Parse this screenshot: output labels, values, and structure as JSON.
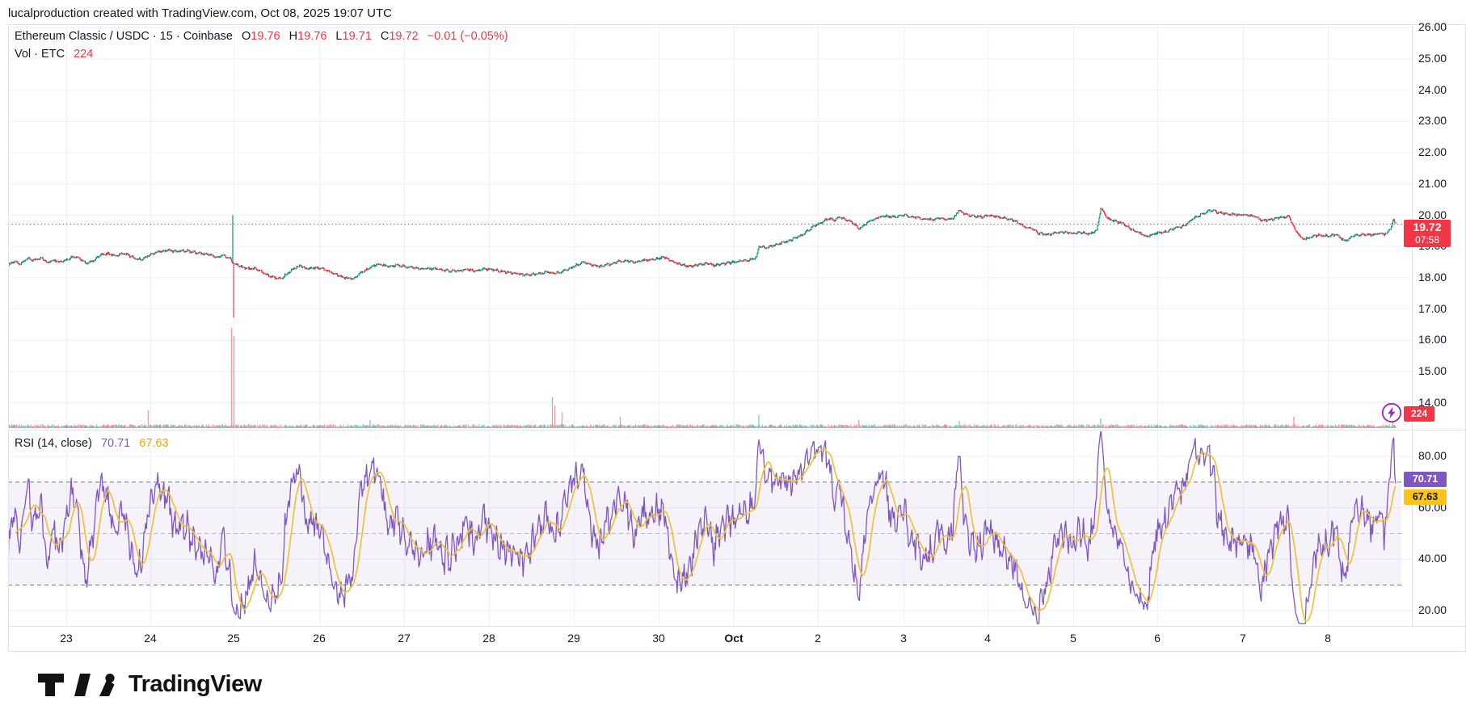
{
  "attribution": "lucalproduction created with TradingView.com, Oct 08, 2025 19:07 UTC",
  "legend": {
    "title": "Ethereum Classic / USDC · 15 · Coinbase",
    "ohlc": [
      {
        "label": "O",
        "value": "19.76"
      },
      {
        "label": "H",
        "value": "19.76"
      },
      {
        "label": "L",
        "value": "19.71"
      },
      {
        "label": "C",
        "value": "19.72"
      }
    ],
    "change": "−0.01 (−0.05%)",
    "vol_label": "Vol · ETC",
    "vol_value": "224"
  },
  "rsi_legend": {
    "label": "RSI (14, close)",
    "rsi_value": "70.71",
    "ma_value": "67.63"
  },
  "badges": {
    "price": "19.72",
    "price_time": "07:58",
    "volume": "224",
    "rsi": "70.71",
    "rsi_ma": "67.63"
  },
  "logo": {
    "text": "TradingView"
  },
  "colors": {
    "up": "#089981",
    "down": "#F23645",
    "accent_red": "#F23645",
    "rsi_line": "#7E57C2",
    "rsi_ma_line": "#F0C13B",
    "badge_purple": "#7E57C2",
    "badge_yellow": "#FCC419",
    "boost_purple": "#9C27B0",
    "grid": "#eef1f7",
    "border": "#e0e3eb",
    "band_fill": "#7E57C2",
    "dashed": "#787b86",
    "dashed_mid": "#9a9da6"
  },
  "chart_data": [
    {
      "type": "candlestick",
      "symbol": "Ethereum Classic / USDC",
      "interval": "15",
      "exchange": "Coinbase",
      "ohlc": {
        "open": 19.76,
        "high": 19.76,
        "low": 19.71,
        "close": 19.72,
        "change": -0.01,
        "change_pct": -0.05
      },
      "volume": 224,
      "last_price": 19.72,
      "last_time": "07:58",
      "y_ticks": [
        26,
        25,
        24,
        23,
        22,
        21,
        20,
        19,
        18,
        17,
        16,
        15,
        14
      ],
      "x_labels": [
        "23",
        "24",
        "25",
        "26",
        "27",
        "28",
        "29",
        "30",
        "Oct",
        "2",
        "3",
        "4",
        "5",
        "6",
        "7",
        "8"
      ],
      "x_label_bold": "Oct",
      "ylim": [
        13.6,
        26.1
      ],
      "price_keypoints": [
        [
          -0.9,
          18.45
        ],
        [
          -0.69,
          18.42
        ],
        [
          -0.62,
          18.52
        ],
        [
          -0.55,
          18.45
        ],
        [
          -0.45,
          18.62
        ],
        [
          -0.38,
          18.55
        ],
        [
          -0.3,
          18.62
        ],
        [
          -0.22,
          18.48
        ],
        [
          -0.15,
          18.56
        ],
        [
          -0.08,
          18.5
        ],
        [
          0,
          18.58
        ],
        [
          0.08,
          18.68
        ],
        [
          0.16,
          18.62
        ],
        [
          0.24,
          18.45
        ],
        [
          0.32,
          18.55
        ],
        [
          0.4,
          18.72
        ],
        [
          0.5,
          18.78
        ],
        [
          0.58,
          18.7
        ],
        [
          0.66,
          18.78
        ],
        [
          0.74,
          18.72
        ],
        [
          0.82,
          18.62
        ],
        [
          0.9,
          18.58
        ],
        [
          0.96,
          18.68
        ],
        [
          1.04,
          18.78
        ],
        [
          1.12,
          18.85
        ],
        [
          1.22,
          18.87
        ],
        [
          1.32,
          18.84
        ],
        [
          1.42,
          18.87
        ],
        [
          1.52,
          18.82
        ],
        [
          1.62,
          18.78
        ],
        [
          1.72,
          18.72
        ],
        [
          1.8,
          18.66
        ],
        [
          1.88,
          18.72
        ],
        [
          1.96,
          18.6
        ],
        [
          1.99,
          18.5
        ],
        [
          2.02,
          18.42
        ],
        [
          2.1,
          18.35
        ],
        [
          2.18,
          18.28
        ],
        [
          2.26,
          18.3
        ],
        [
          2.36,
          18.12
        ],
        [
          2.46,
          18.02
        ],
        [
          2.54,
          17.97
        ],
        [
          2.62,
          18.12
        ],
        [
          2.7,
          18.3
        ],
        [
          2.78,
          18.38
        ],
        [
          2.86,
          18.28
        ],
        [
          2.94,
          18.32
        ],
        [
          3.02,
          18.3
        ],
        [
          3.1,
          18.22
        ],
        [
          3.2,
          18.1
        ],
        [
          3.3,
          18.0
        ],
        [
          3.4,
          17.98
        ],
        [
          3.5,
          18.18
        ],
        [
          3.6,
          18.32
        ],
        [
          3.68,
          18.44
        ],
        [
          3.76,
          18.4
        ],
        [
          3.84,
          18.36
        ],
        [
          3.92,
          18.4
        ],
        [
          4.0,
          18.36
        ],
        [
          4.12,
          18.32
        ],
        [
          4.24,
          18.28
        ],
        [
          4.36,
          18.3
        ],
        [
          4.48,
          18.24
        ],
        [
          4.6,
          18.2
        ],
        [
          4.72,
          18.26
        ],
        [
          4.84,
          18.22
        ],
        [
          4.96,
          18.28
        ],
        [
          5.08,
          18.24
        ],
        [
          5.2,
          18.18
        ],
        [
          5.32,
          18.14
        ],
        [
          5.44,
          18.08
        ],
        [
          5.56,
          18.12
        ],
        [
          5.68,
          18.18
        ],
        [
          5.78,
          18.14
        ],
        [
          5.88,
          18.22
        ],
        [
          5.96,
          18.3
        ],
        [
          6.04,
          18.42
        ],
        [
          6.12,
          18.5
        ],
        [
          6.2,
          18.42
        ],
        [
          6.3,
          18.36
        ],
        [
          6.4,
          18.42
        ],
        [
          6.5,
          18.5
        ],
        [
          6.6,
          18.56
        ],
        [
          6.7,
          18.5
        ],
        [
          6.8,
          18.55
        ],
        [
          6.9,
          18.58
        ],
        [
          7.0,
          18.62
        ],
        [
          7.08,
          18.66
        ],
        [
          7.16,
          18.55
        ],
        [
          7.24,
          18.46
        ],
        [
          7.34,
          18.4
        ],
        [
          7.44,
          18.36
        ],
        [
          7.54,
          18.42
        ],
        [
          7.64,
          18.46
        ],
        [
          7.74,
          18.4
        ],
        [
          7.84,
          18.44
        ],
        [
          7.94,
          18.48
        ],
        [
          8.04,
          18.52
        ],
        [
          8.14,
          18.55
        ],
        [
          8.22,
          18.6
        ],
        [
          8.26,
          18.62
        ],
        [
          8.3,
          19.02
        ],
        [
          8.38,
          18.96
        ],
        [
          8.46,
          19.03
        ],
        [
          8.54,
          19.08
        ],
        [
          8.62,
          19.15
        ],
        [
          8.72,
          19.26
        ],
        [
          8.82,
          19.38
        ],
        [
          8.9,
          19.55
        ],
        [
          8.97,
          19.68
        ],
        [
          9.05,
          19.78
        ],
        [
          9.12,
          19.9
        ],
        [
          9.18,
          19.84
        ],
        [
          9.26,
          19.93
        ],
        [
          9.32,
          19.86
        ],
        [
          9.4,
          19.78
        ],
        [
          9.48,
          19.56
        ],
        [
          9.54,
          19.7
        ],
        [
          9.62,
          19.84
        ],
        [
          9.7,
          19.92
        ],
        [
          9.78,
          19.98
        ],
        [
          9.86,
          19.94
        ],
        [
          9.94,
          19.98
        ],
        [
          10.02,
          20.0
        ],
        [
          10.12,
          19.94
        ],
        [
          10.22,
          19.9
        ],
        [
          10.32,
          19.86
        ],
        [
          10.42,
          19.9
        ],
        [
          10.52,
          19.86
        ],
        [
          10.6,
          19.92
        ],
        [
          10.66,
          20.18
        ],
        [
          10.72,
          20.04
        ],
        [
          10.82,
          19.97
        ],
        [
          10.92,
          19.95
        ],
        [
          11.02,
          19.99
        ],
        [
          11.12,
          19.95
        ],
        [
          11.22,
          19.9
        ],
        [
          11.32,
          19.82
        ],
        [
          11.42,
          19.65
        ],
        [
          11.52,
          19.55
        ],
        [
          11.6,
          19.42
        ],
        [
          11.7,
          19.38
        ],
        [
          11.8,
          19.44
        ],
        [
          11.9,
          19.46
        ],
        [
          12.0,
          19.42
        ],
        [
          12.1,
          19.45
        ],
        [
          12.2,
          19.4
        ],
        [
          12.28,
          19.52
        ],
        [
          12.33,
          20.25
        ],
        [
          12.4,
          19.9
        ],
        [
          12.5,
          19.8
        ],
        [
          12.58,
          19.76
        ],
        [
          12.68,
          19.56
        ],
        [
          12.78,
          19.44
        ],
        [
          12.88,
          19.32
        ],
        [
          12.98,
          19.42
        ],
        [
          13.08,
          19.46
        ],
        [
          13.18,
          19.56
        ],
        [
          13.3,
          19.64
        ],
        [
          13.42,
          19.9
        ],
        [
          13.52,
          20.04
        ],
        [
          13.62,
          20.16
        ],
        [
          13.72,
          20.08
        ],
        [
          13.82,
          20.04
        ],
        [
          13.92,
          20.02
        ],
        [
          14.02,
          20.0
        ],
        [
          14.12,
          19.98
        ],
        [
          14.22,
          19.82
        ],
        [
          14.32,
          19.86
        ],
        [
          14.44,
          19.93
        ],
        [
          14.54,
          19.96
        ],
        [
          14.62,
          19.5
        ],
        [
          14.7,
          19.22
        ],
        [
          14.8,
          19.3
        ],
        [
          14.9,
          19.38
        ],
        [
          15.0,
          19.33
        ],
        [
          15.1,
          19.38
        ],
        [
          15.2,
          19.17
        ],
        [
          15.3,
          19.33
        ],
        [
          15.4,
          19.4
        ],
        [
          15.5,
          19.36
        ],
        [
          15.6,
          19.42
        ],
        [
          15.68,
          19.38
        ],
        [
          15.74,
          19.6
        ],
        [
          15.77,
          19.86
        ],
        [
          15.8,
          19.74
        ]
      ],
      "crash_wick": {
        "t": 1.99,
        "high": 20.0,
        "low": 16.73
      },
      "volume_spikes": [
        [
          0.98,
          22,
          0
        ],
        [
          1.98,
          124,
          0
        ],
        [
          2.01,
          114,
          1
        ],
        [
          3.6,
          10,
          1
        ],
        [
          5.75,
          38,
          1
        ],
        [
          5.78,
          28,
          0
        ],
        [
          5.86,
          20,
          0
        ],
        [
          6.55,
          14,
          1
        ],
        [
          8.3,
          16,
          1
        ],
        [
          9.48,
          10,
          0
        ],
        [
          10.66,
          9,
          1
        ],
        [
          12.33,
          12,
          1
        ],
        [
          14.6,
          14,
          0
        ],
        [
          15.77,
          18,
          1
        ]
      ],
      "t_range": [
        -0.9,
        15.8
      ]
    },
    {
      "type": "line",
      "name": "RSI",
      "params": "(14, close)",
      "current": 70.71,
      "ma_current": 67.63,
      "y_ticks": [
        80,
        60,
        40,
        20
      ],
      "upper_band": 70,
      "middle": 50,
      "lower_band": 30,
      "ylim": [
        14,
        88
      ],
      "derived": "RSI(14) computed from the price series above; MA line = SMA(14) of RSI"
    }
  ]
}
